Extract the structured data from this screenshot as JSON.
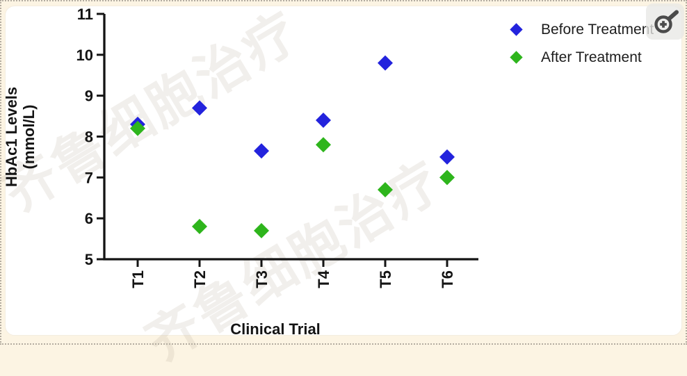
{
  "watermark": {
    "text": "齐鲁细胞治疗"
  },
  "icons": {
    "zoom": "magnifier-plus-icon"
  },
  "colors": {
    "before": "#2323dd",
    "after": "#2eb51c",
    "axis": "#141414",
    "page_background": "#fcf4e3",
    "card_background": "#ffffff"
  },
  "chart_data": {
    "type": "scatter",
    "marker": "diamond",
    "categories": [
      "T1",
      "T2",
      "T3",
      "T4",
      "T5",
      "T6"
    ],
    "series": [
      {
        "name": "Before Treatment",
        "color": "#2323dd",
        "values": [
          8.3,
          8.7,
          7.65,
          8.4,
          9.8,
          7.5
        ]
      },
      {
        "name": "After Treatment",
        "color": "#2eb51c",
        "values": [
          8.2,
          5.8,
          5.7,
          7.8,
          6.7,
          7.0
        ]
      }
    ],
    "title": "",
    "xlabel": "Clinical Trial",
    "ylabel_lines": [
      "HbAc1 Levels",
      "(mmol/L)"
    ],
    "ylim": [
      5,
      11
    ],
    "yticks": [
      5,
      6,
      7,
      8,
      9,
      10,
      11
    ],
    "grid": false,
    "legend_position": "top-right"
  }
}
